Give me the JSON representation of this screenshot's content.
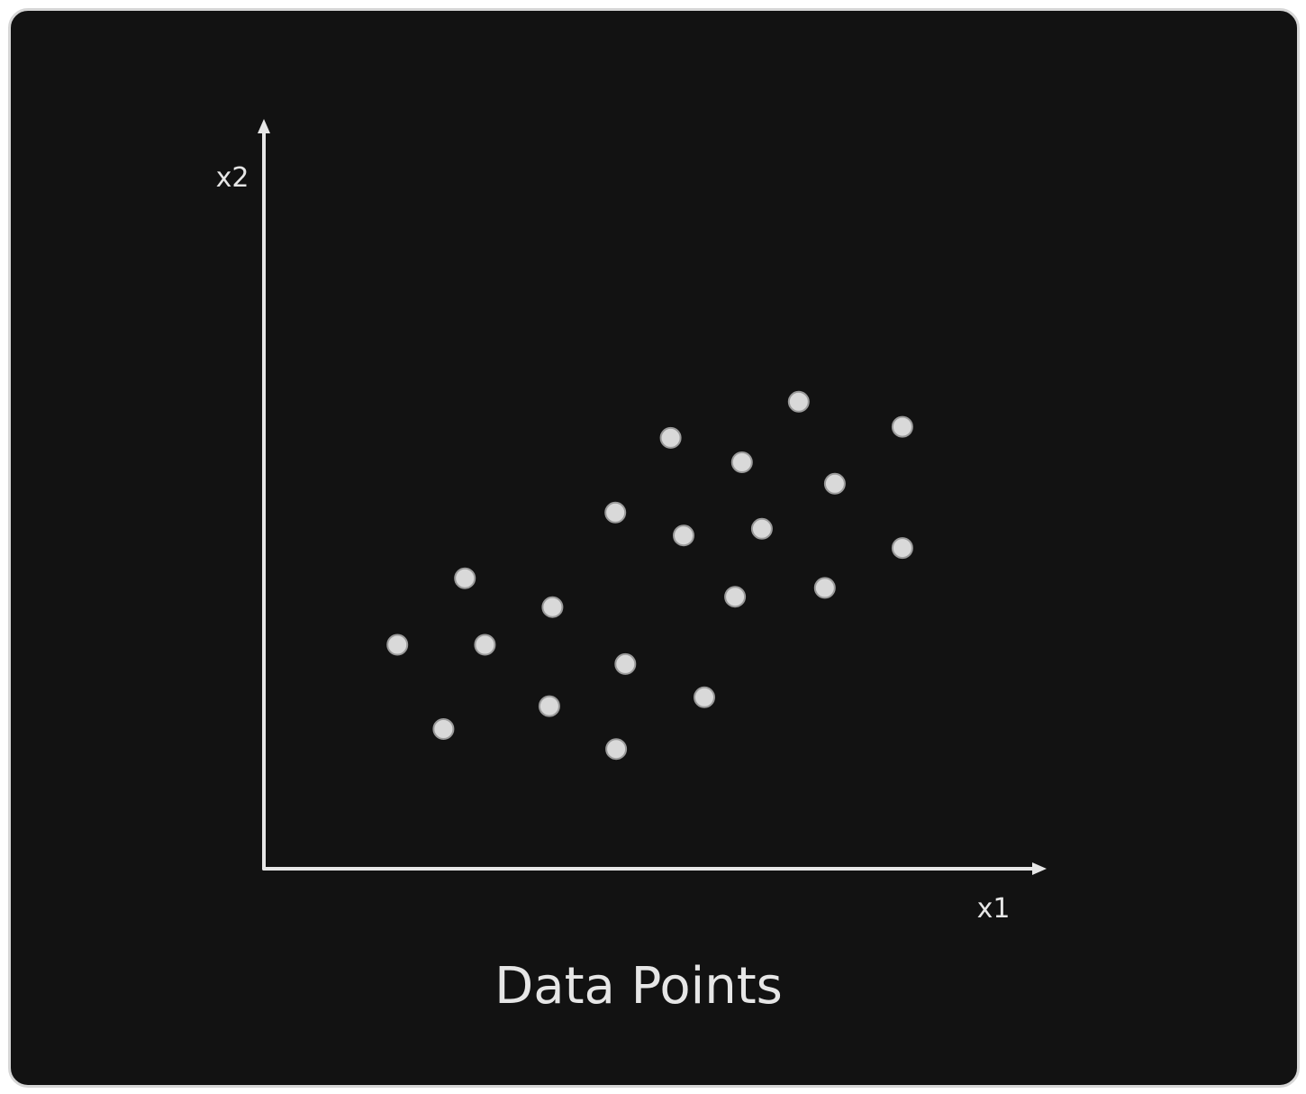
{
  "chart_data": {
    "type": "scatter",
    "title": "Data Points",
    "xlabel": "x1",
    "ylabel": "x2",
    "xlim": [
      0,
      100
    ],
    "ylim": [
      0,
      100
    ],
    "grid": false,
    "legend": "none",
    "point_color": "#d9d9d9",
    "axis_color": "#e6e6e6",
    "background": "#121212",
    "series": [
      {
        "points": [
          {
            "x": 17.4,
            "y": 30.3
          },
          {
            "x": 23.4,
            "y": 18.9
          },
          {
            "x": 26.2,
            "y": 39.3
          },
          {
            "x": 28.8,
            "y": 30.3
          },
          {
            "x": 37.2,
            "y": 22.0
          },
          {
            "x": 37.6,
            "y": 35.4
          },
          {
            "x": 45.9,
            "y": 16.2
          },
          {
            "x": 45.8,
            "y": 48.2
          },
          {
            "x": 47.1,
            "y": 27.7
          },
          {
            "x": 53.0,
            "y": 58.3
          },
          {
            "x": 54.7,
            "y": 45.1
          },
          {
            "x": 57.4,
            "y": 23.2
          },
          {
            "x": 61.4,
            "y": 36.8
          },
          {
            "x": 62.3,
            "y": 55.0
          },
          {
            "x": 64.9,
            "y": 46.0
          },
          {
            "x": 69.7,
            "y": 63.2
          },
          {
            "x": 73.1,
            "y": 38.0
          },
          {
            "x": 74.4,
            "y": 52.1
          },
          {
            "x": 83.2,
            "y": 59.8
          },
          {
            "x": 83.2,
            "y": 43.4
          }
        ]
      }
    ]
  }
}
